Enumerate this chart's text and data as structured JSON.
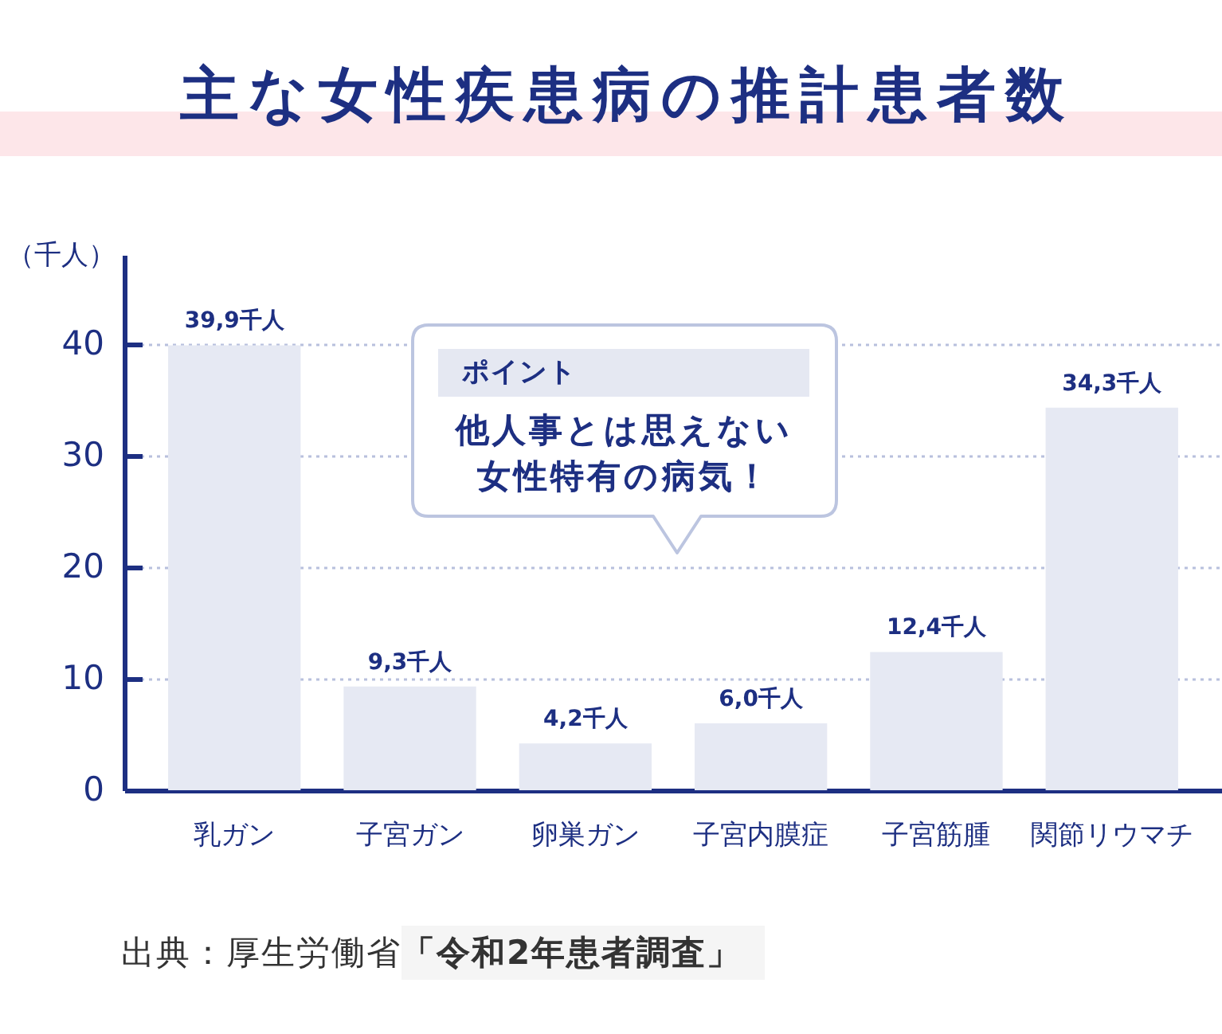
{
  "chart_data": {
    "type": "bar",
    "title": "主な女性疾患病の推計患者数",
    "ylabel": "（千人）",
    "categories": [
      "乳ガン",
      "子宮ガン",
      "卵巣ガン",
      "子宮内膜症",
      "子宮筋腫",
      "関節リウマチ"
    ],
    "values": [
      39.9,
      9.3,
      4.2,
      6.0,
      12.4,
      34.3
    ],
    "value_labels": [
      "39,9千人",
      "9,3千人",
      "4,2千人",
      "6,0千人",
      "12,4千人",
      "34,3千人"
    ],
    "color": "#e6e9f3",
    "ylim": [
      0,
      48
    ],
    "yticks": [
      0,
      10,
      20,
      30,
      40
    ],
    "grid": "y",
    "annotations": [
      "ポイント",
      "他人事とは思えない女性特有の病気！",
      "出典：厚生労働省「令和2年患者調査」"
    ]
  }
}
